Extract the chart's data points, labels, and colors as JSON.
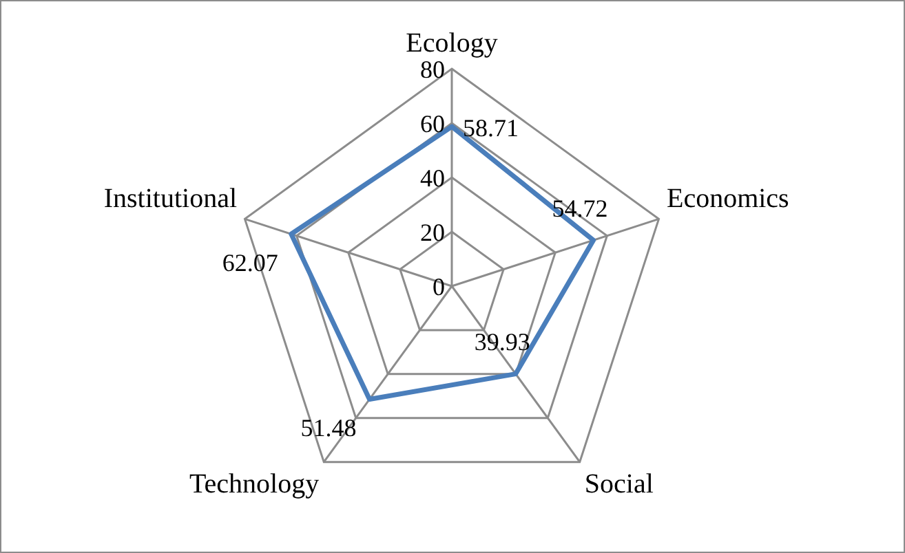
{
  "chart_data": {
    "type": "radar",
    "categories": [
      "Ecology",
      "Economics",
      "Social",
      "Technology",
      "Institutional"
    ],
    "series": [
      {
        "color": "#4a7ebb",
        "values": [
          58.71,
          54.72,
          39.93,
          51.48,
          62.07
        ]
      }
    ],
    "ylim": [
      0,
      80
    ],
    "yticks": [
      0,
      20,
      40,
      60,
      80
    ],
    "grid": true,
    "data_labels": true,
    "legend": false,
    "marker": "none"
  }
}
